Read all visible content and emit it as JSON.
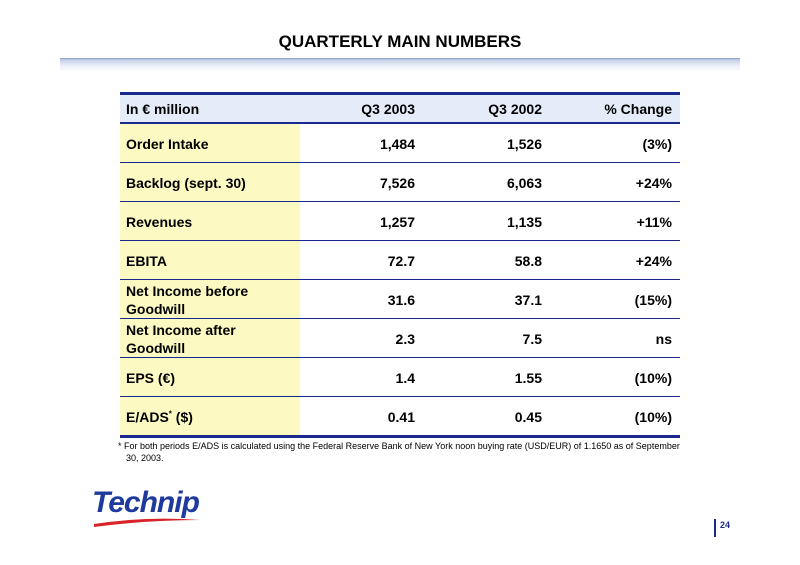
{
  "slide": {
    "title": "QUARTERLY MAIN NUMBERS",
    "page_number": "24"
  },
  "table": {
    "headers": [
      "In € million",
      "Q3 2003",
      "Q3 2002",
      "% Change"
    ],
    "rows": [
      {
        "label": "Order Intake",
        "q3_2003": "1,484",
        "q3_2002": "1,526",
        "change": "(3%)"
      },
      {
        "label": "Backlog (sept. 30)",
        "q3_2003": "7,526",
        "q3_2002": "6,063",
        "change": "+24%"
      },
      {
        "label": "Revenues",
        "q3_2003": "1,257",
        "q3_2002": "1,135",
        "change": "+11%"
      },
      {
        "label": "EBITA",
        "q3_2003": "72.7",
        "q3_2002": "58.8",
        "change": "+24%"
      },
      {
        "label_line1": "Net Income before",
        "label_line2": "Goodwill",
        "q3_2003": "31.6",
        "q3_2002": "37.1",
        "change": "(15%)"
      },
      {
        "label_line1": "Net Income after",
        "label_line2": "Goodwill",
        "q3_2003": "2.3",
        "q3_2002": "7.5",
        "change": "ns"
      },
      {
        "label": "EPS (€)",
        "q3_2003": "1.4",
        "q3_2002": "1.55",
        "change": "(10%)"
      },
      {
        "label": "E/ADS",
        "label_sup": "*",
        "label_suffix": " ($)",
        "q3_2003": "0.41",
        "q3_2002": "0.45",
        "change": "(10%)"
      }
    ]
  },
  "footnote": {
    "marker": "*",
    "text": "For both periods E/ADS is calculated using the Federal Reserve Bank of New York noon buying rate  (USD/EUR) of 1.1650 as of September 30, 2003."
  },
  "logo": {
    "text": "Technip"
  },
  "colors": {
    "rule": "#1a2a8c",
    "header_bg": "#e5ecf9",
    "label_bg": "#fdf9c2",
    "logo_blue": "#1f3a9c",
    "logo_red": "#d8232a"
  }
}
